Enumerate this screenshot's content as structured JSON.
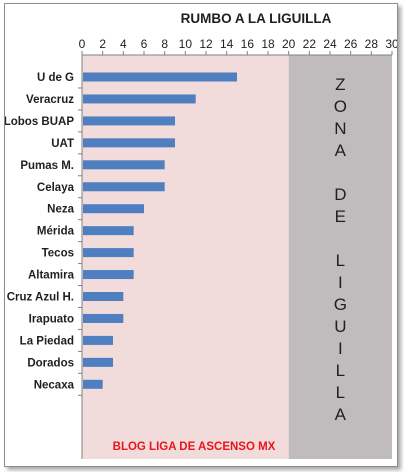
{
  "chart_data": {
    "type": "bar",
    "orientation": "horizontal",
    "title": "RUMBO A LA LIGUILLA",
    "xlim": [
      0,
      30
    ],
    "x_ticks": [
      "0",
      "2",
      "4",
      "6",
      "8",
      "10",
      "12",
      "14",
      "16",
      "18",
      "20",
      "22",
      "24",
      "26",
      "28",
      "30"
    ],
    "categories": [
      "U de G",
      "Veracruz",
      "Lobos BUAP",
      "UAT",
      "Pumas M.",
      "Celaya",
      "Neza",
      "Mérida",
      "Tecos",
      "Altamira",
      "Cruz Azul H.",
      "Irapuato",
      "La Piedad",
      "Dorados",
      "Necaxa"
    ],
    "values": [
      15,
      11,
      9,
      9,
      8,
      8,
      6,
      5,
      5,
      5,
      4,
      4,
      3,
      3,
      2
    ],
    "zone_boundary": 20,
    "zone_label_lines": [
      "Z",
      "O",
      "N",
      "A",
      "",
      "D",
      "E",
      "",
      "L",
      "I",
      "G",
      "U",
      "I",
      "L",
      "L",
      "A"
    ],
    "zone_label": "ZONA DE LIGUILLA",
    "footer_text": "BLOG LIGA DE ASCENSO MX",
    "grid": false,
    "colors": {
      "bar": "#4f7ec1",
      "plot_background": "#f2dcdb",
      "zone_background": "#c0bcbd",
      "footer_text": "#e8141e",
      "axis": "#808080"
    }
  }
}
